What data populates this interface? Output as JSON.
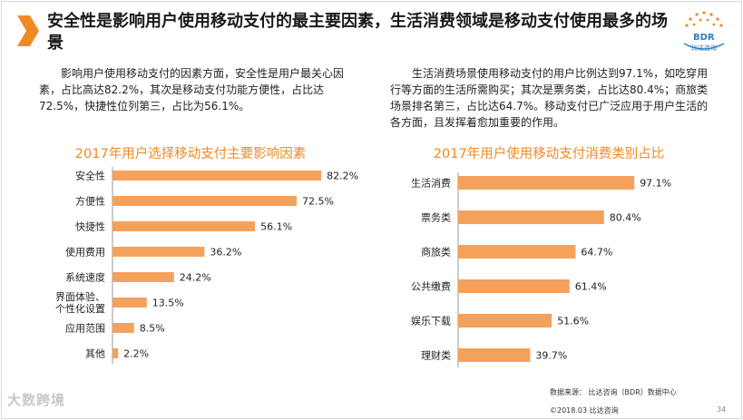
{
  "title": "安全性是影响用户使用移动支付的最主要因素，生活消费领域是移动支付使用最多的场景",
  "logo": {
    "text": "BDR",
    "sub": "比达咨询"
  },
  "left_paragraph": "影响用户使用移动支付的因素方面，安全性是用户最关心因素，占比高达82.2%，其次是移动支付功能方便性，占比达72.5%，快捷性位列第三，占比为56.1%。",
  "right_paragraph": "生活消费场景使用移动支付的用户比例达到97.1%，如吃穿用行等方面的生活所需购买；其次是票务类，占比达80.4%；商旅类场景排名第三，占比达64.7%。移动支付已广泛应用于用户生活的各方面，且发挥着愈加重要的作用。",
  "footer": {
    "source": "数据来源： 比达咨询（BDR）数据中心",
    "copyright": "©2018.03 比达咨询",
    "page": "34",
    "watermark": "大数跨境"
  },
  "colors": {
    "bar": "#f4a15c",
    "title_accent": "#f08a24",
    "logo": "#2a7fc1"
  },
  "chart_data": [
    {
      "type": "bar",
      "orientation": "horizontal",
      "title": "2017年用户选择移动支付主要影响因素",
      "categories": [
        "安全性",
        "方便性",
        "快捷性",
        "使用费用",
        "系统速度",
        "界面体验、个性化设置",
        "应用范围",
        "其他"
      ],
      "values": [
        82.2,
        72.5,
        56.1,
        36.2,
        24.2,
        13.5,
        8.5,
        2.2
      ],
      "labels": [
        "82.2%",
        "72.5%",
        "56.1%",
        "36.2%",
        "24.2%",
        "13.5%",
        "8.5%",
        "2.2%"
      ],
      "xlim": [
        0,
        100
      ],
      "unit": "%"
    },
    {
      "type": "bar",
      "orientation": "horizontal",
      "title": "2017年用户使用移动支付消费类别占比",
      "categories": [
        "生活消费",
        "票务类",
        "商旅类",
        "公共缴费",
        "娱乐下载",
        "理财类"
      ],
      "values": [
        97.1,
        80.4,
        64.7,
        61.4,
        51.6,
        39.7
      ],
      "labels": [
        "97.1%",
        "80.4%",
        "64.7%",
        "61.4%",
        "51.6%",
        "39.7%"
      ],
      "xlim": [
        0,
        100
      ],
      "unit": "%"
    }
  ]
}
